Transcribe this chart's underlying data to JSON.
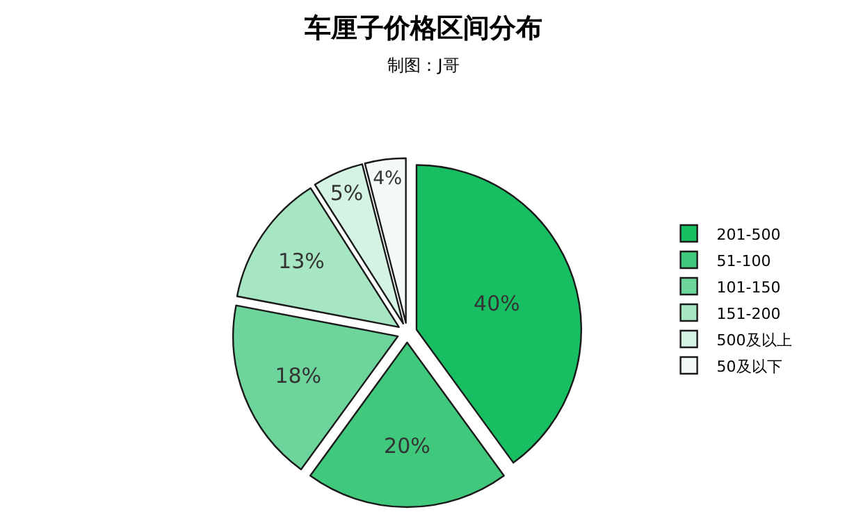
{
  "chart_data": {
    "type": "pie",
    "title": "车厘子价格区间分布",
    "subtitle": "制图：J哥",
    "categories": [
      "201-500",
      "51-100",
      "101-150",
      "151-200",
      "500及以上",
      "50及以下"
    ],
    "values": [
      40,
      20,
      18,
      13,
      5,
      4
    ],
    "colors": [
      "#18bf62",
      "#40c97c",
      "#6dd59b",
      "#a6e6c2",
      "#d4f3e3",
      "#f4fbf7"
    ],
    "value_labels": [
      "40%",
      "20%",
      "18%",
      "13%",
      "5%",
      "4%"
    ],
    "legend": "right"
  }
}
